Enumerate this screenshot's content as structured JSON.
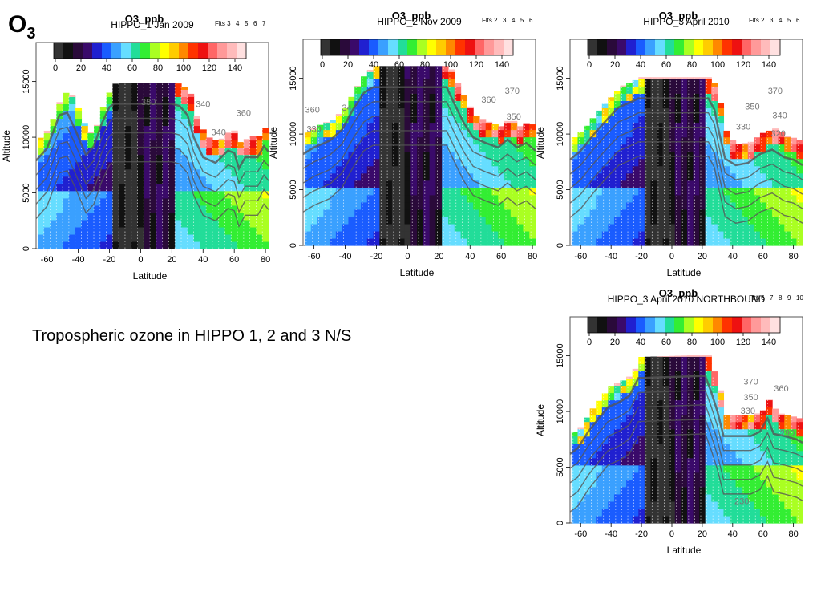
{
  "slide": {
    "title_main": "O",
    "title_sub": "3",
    "caption": "Tropospheric ozone in HIPPO 1, 2 and 3 N/S"
  },
  "colorbar": {
    "ticks": [
      "0",
      "20",
      "40",
      "60",
      "80",
      "100",
      "120",
      "140"
    ],
    "colors": [
      "#333333",
      "#111111",
      "#2a0a3a",
      "#3a0a6a",
      "#2020d0",
      "#1a5cff",
      "#3aa0ff",
      "#66ddff",
      "#22dd99",
      "#33ee33",
      "#aaff22",
      "#ffff00",
      "#ffcc00",
      "#ff8800",
      "#ff3300",
      "#ee1111",
      "#ff6666",
      "#ff9999",
      "#ffbbbb",
      "#ffe0e0"
    ]
  },
  "chart_data": [
    {
      "type": "heatmap",
      "title": "O3_ppb",
      "subtitle": "HIPPO_1 Jan 2009",
      "flights_label": "Flts 3",
      "flights": [
        "4",
        "5",
        "6",
        "7"
      ],
      "xlabel": "Latitude",
      "ylabel": "Altitude",
      "x_ticks": [
        "-60",
        "-40",
        "-20",
        "0",
        "20",
        "40",
        "60",
        "80"
      ],
      "y_ticks": [
        "0",
        "5000",
        "10000",
        "15000"
      ],
      "xlim": [
        -67,
        82
      ],
      "ylim": [
        0,
        18500
      ],
      "contour_labels": [
        {
          "text": "350",
          "lat": 5,
          "alt": 12900
        },
        {
          "text": "340",
          "lat": 40,
          "alt": 12700
        },
        {
          "text": "360",
          "lat": 66,
          "alt": 11900
        },
        {
          "text": "340",
          "lat": 50,
          "alt": 10200
        }
      ],
      "tropopause": [
        [
          -67,
          8700
        ],
        [
          -60,
          9800
        ],
        [
          -52,
          12800
        ],
        [
          -47,
          13000
        ],
        [
          -42,
          11500
        ],
        [
          -35,
          9200
        ],
        [
          -30,
          10000
        ],
        [
          -25,
          12000
        ],
        [
          -20,
          13500
        ],
        [
          -17,
          13800
        ],
        [
          20,
          13800
        ],
        [
          25,
          13600
        ],
        [
          30,
          12800
        ],
        [
          34,
          10800
        ],
        [
          40,
          9000
        ],
        [
          48,
          8500
        ],
        [
          56,
          9600
        ],
        [
          60,
          9400
        ],
        [
          63,
          8000
        ],
        [
          67,
          9000
        ],
        [
          75,
          9000
        ],
        [
          79,
          10000
        ],
        [
          82,
          9500
        ]
      ],
      "column_lats": [
        -66,
        -62,
        -58,
        -54,
        -50,
        -46,
        -42,
        -38,
        -34,
        -30,
        -26,
        -22,
        -18,
        -14,
        -10,
        -6,
        -2,
        2,
        6,
        10,
        14,
        18,
        22,
        26,
        30,
        34,
        38,
        42,
        46,
        50,
        54,
        58,
        62,
        66,
        70,
        74,
        78
      ]
    },
    {
      "type": "heatmap",
      "title": "O3_ppb",
      "subtitle": "HIPPO_2 Nov 2009",
      "flights_label": "Flts 2",
      "flights": [
        "3",
        "4",
        "5",
        "6"
      ],
      "xlabel": "Latitude",
      "ylabel": "Altitude",
      "x_ticks": [
        "-60",
        "-40",
        "-20",
        "0",
        "20",
        "40",
        "60",
        "80"
      ],
      "y_ticks": [
        "0",
        "5000",
        "10000",
        "15000"
      ],
      "xlim": [
        -67,
        82
      ],
      "ylim": [
        0,
        18500
      ],
      "contour_labels": [
        {
          "text": "360",
          "lat": -61,
          "alt": 11900
        },
        {
          "text": "330",
          "lat": -60,
          "alt": 10200
        },
        {
          "text": "34",
          "lat": -39,
          "alt": 12100
        },
        {
          "text": "360",
          "lat": 52,
          "alt": 12800
        },
        {
          "text": "370",
          "lat": 67,
          "alt": 13600
        },
        {
          "text": "350",
          "lat": 68,
          "alt": 11300
        }
      ],
      "tropopause": [
        [
          -67,
          9000
        ],
        [
          -60,
          9600
        ],
        [
          -50,
          10200
        ],
        [
          -42,
          11200
        ],
        [
          -35,
          13000
        ],
        [
          -28,
          14500
        ],
        [
          -22,
          15000
        ],
        [
          25,
          15000
        ],
        [
          30,
          13500
        ],
        [
          36,
          11800
        ],
        [
          42,
          10500
        ],
        [
          50,
          10000
        ],
        [
          58,
          9600
        ],
        [
          64,
          10300
        ],
        [
          70,
          9600
        ],
        [
          76,
          10000
        ],
        [
          82,
          9300
        ]
      ],
      "column_lats": [
        -65,
        -61,
        -57,
        -53,
        -49,
        -45,
        -41,
        -37,
        -33,
        -29,
        -25,
        -21,
        -17,
        -13,
        -9,
        -5,
        -1,
        3,
        7,
        11,
        15,
        19,
        23,
        27,
        31,
        35,
        39,
        43,
        47,
        51,
        55,
        59,
        63,
        67,
        71,
        75,
        79
      ]
    },
    {
      "type": "heatmap",
      "title": "O3_ppb",
      "subtitle": "HIPPO_3 April 2010",
      "flights_label": "Flts 2",
      "flights": [
        "3",
        "4",
        "5",
        "6"
      ],
      "xlabel": "Latitude",
      "ylabel": "Altitude",
      "x_ticks": [
        "-60",
        "-40",
        "-20",
        "0",
        "20",
        "40",
        "60",
        "80"
      ],
      "y_ticks": [
        "0",
        "5000",
        "10000",
        "15000"
      ],
      "xlim": [
        -67,
        86
      ],
      "ylim": [
        0,
        18500
      ],
      "contour_labels": [
        {
          "text": "370",
          "lat": 68,
          "alt": 13600
        },
        {
          "text": "350",
          "lat": 53,
          "alt": 12200
        },
        {
          "text": "340",
          "lat": 71,
          "alt": 11400
        },
        {
          "text": "330",
          "lat": 47,
          "alt": 10400
        },
        {
          "text": "320",
          "lat": 70,
          "alt": 9800
        }
      ],
      "tropopause": [
        [
          -67,
          8500
        ],
        [
          -60,
          9300
        ],
        [
          -50,
          11000
        ],
        [
          -42,
          12200
        ],
        [
          -35,
          13200
        ],
        [
          -28,
          13600
        ],
        [
          -22,
          14000
        ],
        [
          24,
          14000
        ],
        [
          28,
          13000
        ],
        [
          31,
          11000
        ],
        [
          35,
          8600
        ],
        [
          42,
          8000
        ],
        [
          50,
          8200
        ],
        [
          58,
          9000
        ],
        [
          66,
          9400
        ],
        [
          74,
          8700
        ],
        [
          80,
          8500
        ],
        [
          86,
          8000
        ]
      ],
      "column_lats": [
        -65,
        -61,
        -57,
        -53,
        -49,
        -45,
        -41,
        -37,
        -33,
        -29,
        -25,
        -21,
        -17,
        -13,
        -9,
        -5,
        -1,
        3,
        7,
        11,
        15,
        19,
        23,
        27,
        31,
        35,
        39,
        43,
        47,
        51,
        55,
        59,
        63,
        67,
        71,
        75,
        79,
        83
      ]
    },
    {
      "type": "heatmap",
      "title": "O3_ppb",
      "subtitle": "HIPPO_3 April 2010 NORTHBOUND",
      "flights_label": "Flts 6",
      "flights": [
        "7",
        "8",
        "9",
        "10"
      ],
      "xlabel": "Latitude",
      "ylabel": "Altitude",
      "x_ticks": [
        "-60",
        "-40",
        "-20",
        "0",
        "20",
        "40",
        "60",
        "80"
      ],
      "y_ticks": [
        "0",
        "5000",
        "10000",
        "15000"
      ],
      "xlim": [
        -67,
        86
      ],
      "ylim": [
        0,
        18500
      ],
      "contour_labels": [
        {
          "text": "370",
          "lat": 52,
          "alt": 12400
        },
        {
          "text": "360",
          "lat": 72,
          "alt": 11800
        },
        {
          "text": "350",
          "lat": 52,
          "alt": 11000
        },
        {
          "text": "330",
          "lat": 50,
          "alt": 9800
        },
        {
          "text": "290",
          "lat": 76,
          "alt": 7800
        },
        {
          "text": "230",
          "lat": 46,
          "alt": 1700
        }
      ],
      "tropopause": [
        [
          -67,
          7000
        ],
        [
          -62,
          7500
        ],
        [
          -55,
          9000
        ],
        [
          -48,
          10200
        ],
        [
          -42,
          11200
        ],
        [
          -35,
          11600
        ],
        [
          -28,
          12200
        ],
        [
          -22,
          13800
        ],
        [
          22,
          14000
        ],
        [
          26,
          12500
        ],
        [
          30,
          10800
        ],
        [
          34,
          8600
        ],
        [
          40,
          8600
        ],
        [
          52,
          8600
        ],
        [
          58,
          9000
        ],
        [
          63,
          10200
        ],
        [
          67,
          8800
        ],
        [
          74,
          8600
        ],
        [
          82,
          8300
        ],
        [
          86,
          8000
        ]
      ],
      "column_lats": [
        -65,
        -61,
        -57,
        -53,
        -49,
        -45,
        -41,
        -37,
        -33,
        -29,
        -25,
        -21,
        -17,
        -13,
        -9,
        -5,
        -1,
        3,
        7,
        11,
        15,
        19,
        23,
        27,
        31,
        35,
        39,
        43,
        47,
        51,
        55,
        59,
        63,
        67,
        71,
        75,
        79,
        83
      ]
    }
  ]
}
